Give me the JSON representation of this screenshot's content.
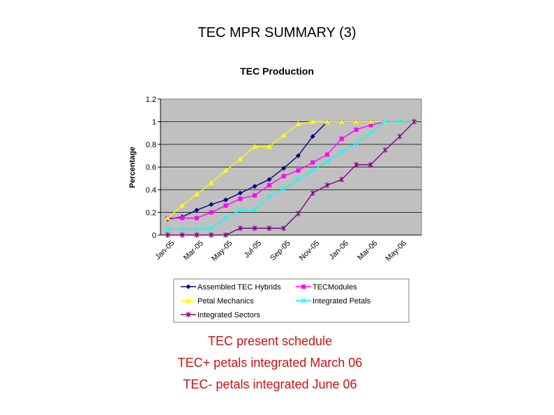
{
  "slide": {
    "title": "TEC MPR SUMMARY (3)",
    "notes": [
      "TEC present schedule",
      "TEC+ petals integrated March 06",
      "TEC- petals integrated June 06"
    ],
    "note_color": "#cc1111"
  },
  "chart_data": {
    "type": "line",
    "title": "TEC Production",
    "xlabel": "",
    "ylabel": "Percentage",
    "ylim": [
      0,
      1.2
    ],
    "yticks": [
      0,
      0.2,
      0.4,
      0.6,
      0.8,
      1,
      1.2
    ],
    "yticklabels": [
      "0",
      "0.2",
      "0.4",
      "0.6",
      "0.8",
      "1",
      "1.2"
    ],
    "grid": true,
    "plot_bg": "#c0c0c0",
    "legend_position": "bottom",
    "categories": [
      "Jan-05",
      "Feb-05",
      "Mar-05",
      "Apr-05",
      "May-05",
      "Jun-05",
      "Jul-05",
      "Aug-05",
      "Sep-05",
      "Oct-05",
      "Nov-05",
      "Dec-05",
      "Jan-06",
      "Feb-06",
      "Mar-06",
      "Apr-06",
      "May-06",
      "Jun-06"
    ],
    "xticklabels": [
      "Jan-05",
      "Mar-05",
      "May-05",
      "Jul-05",
      "Sep-05",
      "Nov-05",
      "Jan-06",
      "Mar-06",
      "May-06"
    ],
    "series": [
      {
        "name": "Assembled TEC Hybrids",
        "color": "#000080",
        "marker": "diamond",
        "values": [
          0.14,
          0.16,
          0.22,
          0.27,
          0.31,
          0.37,
          0.43,
          0.49,
          0.59,
          0.7,
          0.87,
          1.0,
          1.0,
          1.0,
          1.0,
          1.0,
          1.0,
          1.0
        ]
      },
      {
        "name": "TECModules",
        "color": "#ff00ff",
        "marker": "square",
        "values": [
          0.15,
          0.15,
          0.15,
          0.2,
          0.26,
          0.32,
          0.35,
          0.44,
          0.52,
          0.57,
          0.64,
          0.71,
          0.85,
          0.93,
          0.97,
          1.0,
          1.0,
          1.0
        ]
      },
      {
        "name": "Petal Mechanics",
        "color": "#ffff00",
        "marker": "triangle",
        "values": [
          0.15,
          0.26,
          0.36,
          0.46,
          0.57,
          0.67,
          0.78,
          0.78,
          0.88,
          0.98,
          1.0,
          1.0,
          1.0,
          1.0,
          1.0,
          1.0,
          1.0,
          1.0
        ]
      },
      {
        "name": "Integrated Petals",
        "color": "#00ffff",
        "marker": "x",
        "values": [
          0.05,
          0.05,
          0.05,
          0.06,
          0.15,
          0.22,
          0.22,
          0.34,
          0.41,
          0.49,
          0.57,
          0.65,
          0.73,
          0.81,
          0.9,
          1.0,
          1.0,
          1.0
        ]
      },
      {
        "name": "Integrated Sectors",
        "color": "#800080",
        "marker": "star",
        "values": [
          0.0,
          0.0,
          0.0,
          0.0,
          0.0,
          0.06,
          0.06,
          0.06,
          0.06,
          0.19,
          0.37,
          0.44,
          0.49,
          0.62,
          0.62,
          0.75,
          0.87,
          1.0
        ]
      }
    ]
  }
}
